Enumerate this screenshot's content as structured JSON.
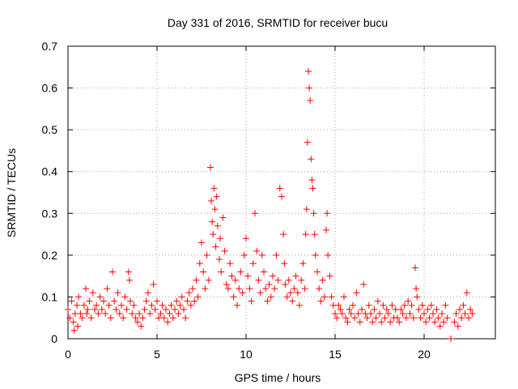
{
  "chart_data": {
    "type": "scatter",
    "title": "Day 331 of 2016, SRMTID for receiver bucu",
    "xlabel": "GPS time / hours",
    "ylabel": "SRMTID / TECUs",
    "xlim": [
      0,
      24
    ],
    "ylim": [
      0,
      0.7
    ],
    "grid": true,
    "marker": "+",
    "color": "#ff0000",
    "x_ticks": [
      0,
      5,
      10,
      15,
      20
    ],
    "x_tick_labels": [
      "0",
      "5",
      "10",
      "15",
      "20"
    ],
    "y_ticks": [
      0,
      0.1,
      0.2,
      0.3,
      0.4,
      0.5,
      0.6,
      0.7
    ],
    "y_tick_labels": [
      "0",
      "0.1",
      "0.2",
      "0.3",
      "0.4",
      "0.5",
      "0.6",
      "0.7"
    ],
    "series": [
      {
        "name": "SRMTID",
        "points": [
          [
            0.0,
            0.07
          ],
          [
            0.1,
            0.05
          ],
          [
            0.2,
            0.09
          ],
          [
            0.3,
            0.04
          ],
          [
            0.35,
            0.02
          ],
          [
            0.4,
            0.06
          ],
          [
            0.5,
            0.08
          ],
          [
            0.55,
            0.03
          ],
          [
            0.6,
            0.1
          ],
          [
            0.7,
            0.06
          ],
          [
            0.8,
            0.05
          ],
          [
            0.9,
            0.08
          ],
          [
            1.0,
            0.12
          ],
          [
            1.05,
            0.06
          ],
          [
            1.1,
            0.07
          ],
          [
            1.2,
            0.09
          ],
          [
            1.3,
            0.05
          ],
          [
            1.4,
            0.11
          ],
          [
            1.5,
            0.07
          ],
          [
            1.6,
            0.08
          ],
          [
            1.7,
            0.06
          ],
          [
            1.8,
            0.1
          ],
          [
            1.9,
            0.07
          ],
          [
            2.0,
            0.09
          ],
          [
            2.1,
            0.06
          ],
          [
            2.2,
            0.12
          ],
          [
            2.3,
            0.08
          ],
          [
            2.4,
            0.05
          ],
          [
            2.5,
            0.16
          ],
          [
            2.6,
            0.09
          ],
          [
            2.7,
            0.07
          ],
          [
            2.8,
            0.11
          ],
          [
            2.9,
            0.06
          ],
          [
            3.0,
            0.08
          ],
          [
            3.1,
            0.05
          ],
          [
            3.2,
            0.1
          ],
          [
            3.3,
            0.07
          ],
          [
            3.4,
            0.16
          ],
          [
            3.45,
            0.14
          ],
          [
            3.5,
            0.09
          ],
          [
            3.6,
            0.06
          ],
          [
            3.7,
            0.08
          ],
          [
            3.8,
            0.05
          ],
          [
            3.9,
            0.04
          ],
          [
            4.0,
            0.06
          ],
          [
            4.1,
            0.03
          ],
          [
            4.2,
            0.05
          ],
          [
            4.3,
            0.07
          ],
          [
            4.4,
            0.09
          ],
          [
            4.5,
            0.11
          ],
          [
            4.6,
            0.06
          ],
          [
            4.7,
            0.08
          ],
          [
            4.8,
            0.13
          ],
          [
            4.9,
            0.07
          ],
          [
            5.0,
            0.09
          ],
          [
            5.1,
            0.05
          ],
          [
            5.2,
            0.06
          ],
          [
            5.3,
            0.08
          ],
          [
            5.4,
            0.05
          ],
          [
            5.5,
            0.07
          ],
          [
            5.6,
            0.04
          ],
          [
            5.7,
            0.06
          ],
          [
            5.8,
            0.08
          ],
          [
            5.9,
            0.05
          ],
          [
            6.0,
            0.07
          ],
          [
            6.1,
            0.09
          ],
          [
            6.2,
            0.06
          ],
          [
            6.3,
            0.08
          ],
          [
            6.4,
            0.1
          ],
          [
            6.5,
            0.07
          ],
          [
            6.6,
            0.05
          ],
          [
            6.7,
            0.09
          ],
          [
            6.8,
            0.11
          ],
          [
            6.9,
            0.08
          ],
          [
            7.0,
            0.12
          ],
          [
            7.1,
            0.09
          ],
          [
            7.2,
            0.14
          ],
          [
            7.3,
            0.1
          ],
          [
            7.4,
            0.18
          ],
          [
            7.5,
            0.23
          ],
          [
            7.6,
            0.16
          ],
          [
            7.7,
            0.12
          ],
          [
            7.8,
            0.2
          ],
          [
            7.9,
            0.14
          ],
          [
            8.0,
            0.41
          ],
          [
            8.05,
            0.33
          ],
          [
            8.1,
            0.28
          ],
          [
            8.15,
            0.25
          ],
          [
            8.2,
            0.36
          ],
          [
            8.25,
            0.31
          ],
          [
            8.3,
            0.22
          ],
          [
            8.35,
            0.34
          ],
          [
            8.4,
            0.27
          ],
          [
            8.5,
            0.19
          ],
          [
            8.55,
            0.24
          ],
          [
            8.6,
            0.16
          ],
          [
            8.7,
            0.29
          ],
          [
            8.8,
            0.21
          ],
          [
            8.9,
            0.13
          ],
          [
            9.0,
            0.12
          ],
          [
            9.1,
            0.18
          ],
          [
            9.2,
            0.15
          ],
          [
            9.3,
            0.1
          ],
          [
            9.4,
            0.14
          ],
          [
            9.5,
            0.08
          ],
          [
            9.6,
            0.12
          ],
          [
            9.7,
            0.16
          ],
          [
            9.8,
            0.11
          ],
          [
            9.9,
            0.2
          ],
          [
            10.0,
            0.24
          ],
          [
            10.1,
            0.15
          ],
          [
            10.2,
            0.12
          ],
          [
            10.3,
            0.09
          ],
          [
            10.4,
            0.18
          ],
          [
            10.5,
            0.3
          ],
          [
            10.6,
            0.21
          ],
          [
            10.7,
            0.14
          ],
          [
            10.8,
            0.11
          ],
          [
            10.9,
            0.2
          ],
          [
            11.0,
            0.16
          ],
          [
            11.1,
            0.12
          ],
          [
            11.2,
            0.09
          ],
          [
            11.3,
            0.13
          ],
          [
            11.4,
            0.1
          ],
          [
            11.5,
            0.15
          ],
          [
            11.6,
            0.12
          ],
          [
            11.7,
            0.2
          ],
          [
            11.8,
            0.14
          ],
          [
            11.9,
            0.36
          ],
          [
            12.0,
            0.34
          ],
          [
            12.1,
            0.25
          ],
          [
            12.15,
            0.18
          ],
          [
            12.2,
            0.13
          ],
          [
            12.3,
            0.1
          ],
          [
            12.4,
            0.14
          ],
          [
            12.5,
            0.11
          ],
          [
            12.6,
            0.09
          ],
          [
            12.7,
            0.12
          ],
          [
            12.8,
            0.15
          ],
          [
            12.9,
            0.11
          ],
          [
            13.0,
            0.08
          ],
          [
            13.1,
            0.14
          ],
          [
            13.2,
            0.18
          ],
          [
            13.3,
            0.12
          ],
          [
            13.35,
            0.25
          ],
          [
            13.4,
            0.31
          ],
          [
            13.45,
            0.47
          ],
          [
            13.5,
            0.64
          ],
          [
            13.55,
            0.6
          ],
          [
            13.6,
            0.57
          ],
          [
            13.65,
            0.43
          ],
          [
            13.7,
            0.38
          ],
          [
            13.75,
            0.36
          ],
          [
            13.8,
            0.3
          ],
          [
            13.85,
            0.25
          ],
          [
            13.9,
            0.2
          ],
          [
            14.0,
            0.16
          ],
          [
            14.1,
            0.12
          ],
          [
            14.2,
            0.09
          ],
          [
            14.3,
            0.14
          ],
          [
            14.4,
            0.1
          ],
          [
            14.5,
            0.26
          ],
          [
            14.55,
            0.3
          ],
          [
            14.6,
            0.2
          ],
          [
            14.7,
            0.15
          ],
          [
            14.8,
            0.1
          ],
          [
            14.9,
            0.08
          ],
          [
            15.0,
            0.06
          ],
          [
            15.1,
            0.05
          ],
          [
            15.2,
            0.08
          ],
          [
            15.3,
            0.07
          ],
          [
            15.4,
            0.06
          ],
          [
            15.5,
            0.1
          ],
          [
            15.6,
            0.05
          ],
          [
            15.7,
            0.04
          ],
          [
            15.8,
            0.07
          ],
          [
            15.9,
            0.06
          ],
          [
            16.0,
            0.08
          ],
          [
            16.1,
            0.05
          ],
          [
            16.2,
            0.11
          ],
          [
            16.3,
            0.06
          ],
          [
            16.4,
            0.04
          ],
          [
            16.5,
            0.07
          ],
          [
            16.6,
            0.13
          ],
          [
            16.7,
            0.06
          ],
          [
            16.8,
            0.05
          ],
          [
            16.9,
            0.08
          ],
          [
            17.0,
            0.06
          ],
          [
            17.1,
            0.04
          ],
          [
            17.2,
            0.07
          ],
          [
            17.3,
            0.05
          ],
          [
            17.4,
            0.09
          ],
          [
            17.5,
            0.06
          ],
          [
            17.6,
            0.04
          ],
          [
            17.7,
            0.08
          ],
          [
            17.8,
            0.05
          ],
          [
            17.9,
            0.07
          ],
          [
            18.0,
            0.06
          ],
          [
            18.1,
            0.04
          ],
          [
            18.2,
            0.08
          ],
          [
            18.3,
            0.05
          ],
          [
            18.4,
            0.07
          ],
          [
            18.5,
            0.05
          ],
          [
            18.6,
            0.04
          ],
          [
            18.7,
            0.07
          ],
          [
            18.8,
            0.06
          ],
          [
            18.9,
            0.08
          ],
          [
            19.0,
            0.05
          ],
          [
            19.1,
            0.09
          ],
          [
            19.2,
            0.06
          ],
          [
            19.3,
            0.08
          ],
          [
            19.4,
            0.05
          ],
          [
            19.5,
            0.17
          ],
          [
            19.55,
            0.12
          ],
          [
            19.6,
            0.1
          ],
          [
            19.7,
            0.07
          ],
          [
            19.8,
            0.05
          ],
          [
            19.9,
            0.08
          ],
          [
            20.0,
            0.06
          ],
          [
            20.1,
            0.04
          ],
          [
            20.2,
            0.07
          ],
          [
            20.3,
            0.05
          ],
          [
            20.4,
            0.08
          ],
          [
            20.5,
            0.06
          ],
          [
            20.6,
            0.04
          ],
          [
            20.7,
            0.07
          ],
          [
            20.8,
            0.05
          ],
          [
            20.9,
            0.03
          ],
          [
            21.0,
            0.06
          ],
          [
            21.1,
            0.04
          ],
          [
            21.2,
            0.08
          ],
          [
            21.3,
            0.05
          ],
          [
            21.5,
            0.0
          ],
          [
            21.7,
            0.04
          ],
          [
            21.8,
            0.06
          ],
          [
            21.9,
            0.03
          ],
          [
            22.0,
            0.07
          ],
          [
            22.1,
            0.05
          ],
          [
            22.2,
            0.08
          ],
          [
            22.3,
            0.06
          ],
          [
            22.4,
            0.11
          ],
          [
            22.5,
            0.05
          ],
          [
            22.6,
            0.07
          ],
          [
            22.7,
            0.06
          ]
        ]
      }
    ]
  }
}
